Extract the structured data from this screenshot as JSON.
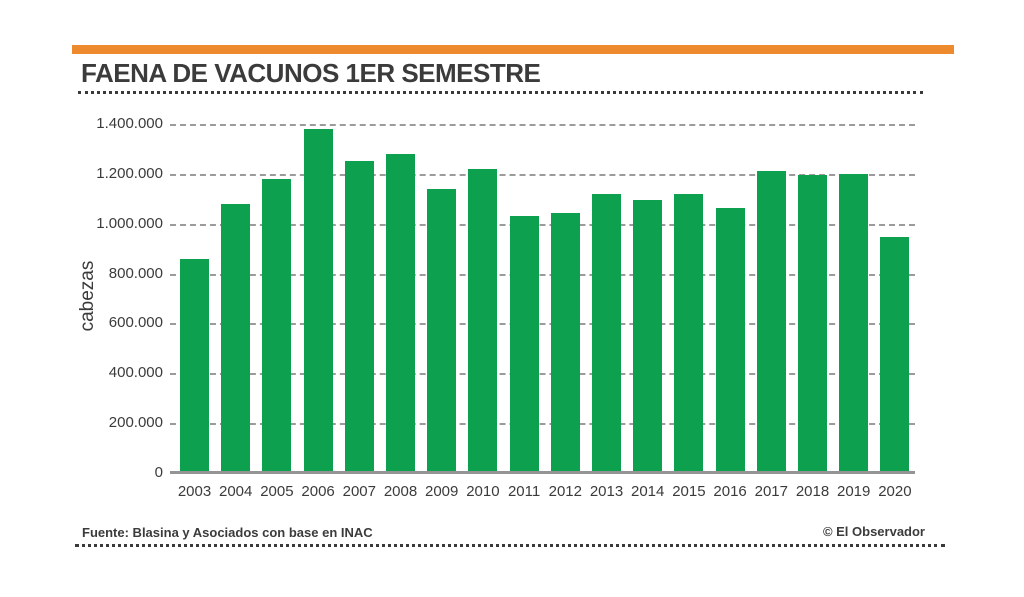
{
  "page": {
    "title": "FAENA DE VACUNOS 1ER SEMESTRE"
  },
  "chart_data": {
    "type": "bar",
    "title": "FAENA DE VACUNOS 1ER SEMESTRE",
    "xlabel": "",
    "ylabel": "cabezas",
    "categories": [
      "2003",
      "2004",
      "2005",
      "2006",
      "2007",
      "2008",
      "2009",
      "2010",
      "2011",
      "2012",
      "2013",
      "2014",
      "2015",
      "2016",
      "2017",
      "2018",
      "2019",
      "2020"
    ],
    "values": [
      860000,
      1080000,
      1180000,
      1380000,
      1250000,
      1280000,
      1140000,
      1220000,
      1030000,
      1045000,
      1120000,
      1095000,
      1120000,
      1065000,
      1210000,
      1195000,
      1200000,
      945000
    ],
    "ylim": [
      0,
      1400000
    ],
    "yticks": [
      0,
      200000,
      400000,
      600000,
      800000,
      1000000,
      1200000,
      1400000
    ],
    "ytick_labels": [
      "0",
      "200.000",
      "400.000",
      "600.000",
      "800.000",
      "1.000.000",
      "1.200.000",
      "1.400.000"
    ],
    "grid": "horizontal-dashed",
    "legend": "none",
    "bar_color": "#0CA04F"
  },
  "footer": {
    "source": "Fuente: Blasina y Asociados con base en INAC",
    "credit": "© El Observador"
  },
  "colors": {
    "accent_orange": "#EE8A2E",
    "bar_green": "#0CA04F",
    "text_dark": "#3B3B3B",
    "grid_gray": "#9B9B9B",
    "axis_gray": "#949494",
    "background": "#FFFFFF"
  }
}
